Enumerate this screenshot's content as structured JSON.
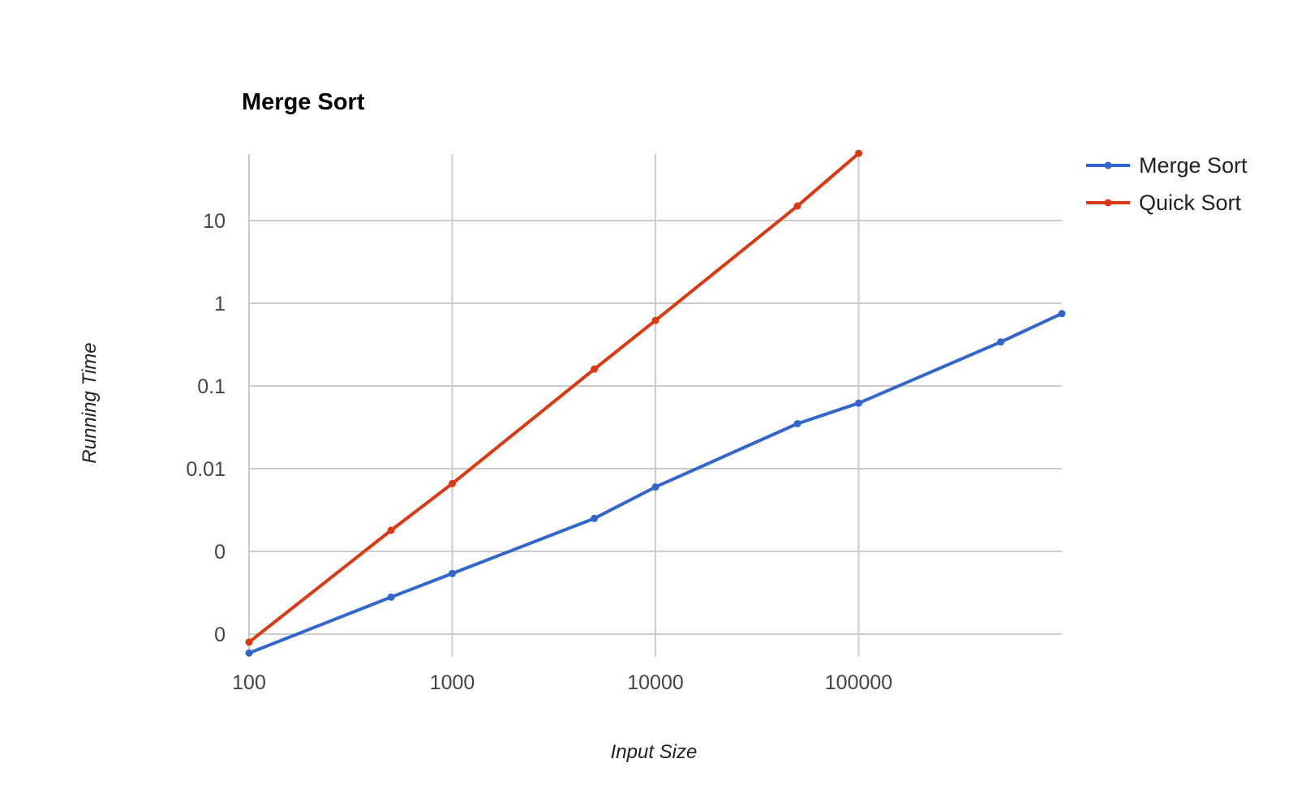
{
  "chart_data": {
    "type": "line",
    "title": "Merge Sort",
    "xlabel": "Input Size",
    "ylabel": "Running Time",
    "x_scale": "log",
    "y_scale": "log",
    "xlim": [
      100,
      1000000
    ],
    "ylim": [
      5e-05,
      70
    ],
    "x_ticks": [
      {
        "value": 100,
        "label": "100"
      },
      {
        "value": 1000,
        "label": "1000"
      },
      {
        "value": 10000,
        "label": "10000"
      },
      {
        "value": 100000,
        "label": "100000"
      }
    ],
    "y_ticks": [
      {
        "value": 0.0001,
        "label": "0"
      },
      {
        "value": 0.001,
        "label": "0"
      },
      {
        "value": 0.01,
        "label": "0.01"
      },
      {
        "value": 0.1,
        "label": "0.1"
      },
      {
        "value": 1,
        "label": "1"
      },
      {
        "value": 10,
        "label": "10"
      }
    ],
    "grid": true,
    "legend": "right",
    "series": [
      {
        "name": "Merge Sort",
        "color": "#3366cc",
        "points": [
          {
            "x": 100,
            "y": 5.9e-05
          },
          {
            "x": 500,
            "y": 0.00028
          },
          {
            "x": 1000,
            "y": 0.00054
          },
          {
            "x": 5000,
            "y": 0.0025
          },
          {
            "x": 10000,
            "y": 0.006
          },
          {
            "x": 50000,
            "y": 0.035
          },
          {
            "x": 100000,
            "y": 0.062
          },
          {
            "x": 500000,
            "y": 0.34
          },
          {
            "x": 1000000,
            "y": 0.75
          }
        ]
      },
      {
        "name": "Quick Sort",
        "color": "#dc3912",
        "points": [
          {
            "x": 100,
            "y": 8e-05
          },
          {
            "x": 500,
            "y": 0.0018
          },
          {
            "x": 1000,
            "y": 0.0066
          },
          {
            "x": 5000,
            "y": 0.16
          },
          {
            "x": 10000,
            "y": 0.62
          },
          {
            "x": 50000,
            "y": 15
          },
          {
            "x": 100000,
            "y": 65
          }
        ]
      }
    ]
  }
}
